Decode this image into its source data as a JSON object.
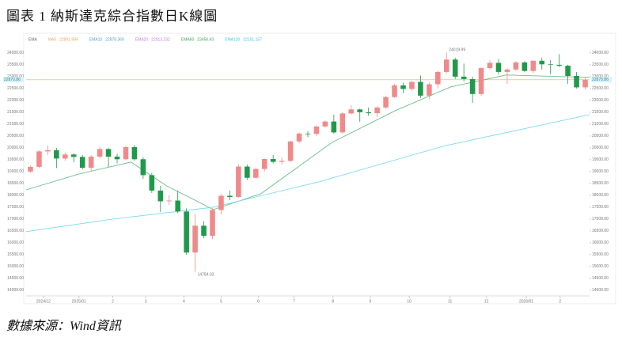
{
  "chart_data": {
    "type": "candlestick",
    "title": "圖表 1 納斯達克綜合指數日K線圖",
    "source": "數據來源：Wind資訊",
    "indicators": [
      {
        "name": "EMA",
        "color": "#666"
      },
      {
        "name": "MA5",
        "value": 22891.584,
        "color": "#f4a460"
      },
      {
        "name": "EMA10",
        "value": 22878.369,
        "color": "#4aa3c8"
      },
      {
        "name": "EMA20",
        "value": 22913.232,
        "color": "#c77dd8"
      },
      {
        "name": "EMA60",
        "value": 23456.43,
        "color": "#3aa55a"
      },
      {
        "name": "EMA120",
        "value": 22151.157,
        "color": "#38c8e0"
      }
    ],
    "up_color": "#f08a8a",
    "down_color": "#1f9a4a",
    "candles": [
      [
        19000,
        19250,
        18950,
        19200
      ],
      [
        19200,
        19900,
        19150,
        19850
      ],
      [
        19850,
        20100,
        19700,
        19900
      ],
      [
        19900,
        20000,
        19150,
        19550
      ],
      [
        19550,
        19800,
        19450,
        19720
      ],
      [
        19720,
        19780,
        19400,
        19620
      ],
      [
        19620,
        19700,
        19100,
        19160
      ],
      [
        19160,
        19700,
        19000,
        19630
      ],
      [
        19630,
        20050,
        19550,
        19950
      ],
      [
        19950,
        20000,
        19200,
        19630
      ],
      [
        19630,
        19750,
        19350,
        19520
      ],
      [
        19520,
        20080,
        19480,
        20030
      ],
      [
        20030,
        20120,
        19450,
        19520
      ],
      [
        19520,
        19600,
        18700,
        18850
      ],
      [
        18850,
        18950,
        18100,
        18200
      ],
      [
        18200,
        18400,
        17300,
        17750
      ],
      [
        17750,
        18000,
        17600,
        17780
      ],
      [
        17780,
        18200,
        17250,
        17320
      ],
      [
        17320,
        17450,
        15500,
        15590
      ],
      [
        15590,
        17200,
        14784.03,
        16720
      ],
      [
        16720,
        16900,
        16200,
        16290
      ],
      [
        16290,
        17450,
        16150,
        17380
      ],
      [
        17380,
        18050,
        17200,
        17980
      ],
      [
        17980,
        18200,
        17800,
        17930
      ],
      [
        17930,
        19300,
        17900,
        19210
      ],
      [
        19210,
        19300,
        18650,
        18740
      ],
      [
        18740,
        19150,
        18700,
        19110
      ],
      [
        19110,
        19550,
        19000,
        19530
      ],
      [
        19530,
        19700,
        19350,
        19410
      ],
      [
        19410,
        19600,
        19300,
        19450
      ],
      [
        19450,
        20300,
        19400,
        20270
      ],
      [
        20270,
        20650,
        20200,
        20600
      ],
      [
        20600,
        20700,
        20450,
        20590
      ],
      [
        20590,
        20950,
        20500,
        20900
      ],
      [
        20900,
        21150,
        20850,
        21110
      ],
      [
        21110,
        21400,
        20600,
        20650
      ],
      [
        20650,
        21500,
        20600,
        21450
      ],
      [
        21450,
        21800,
        21400,
        21620
      ],
      [
        21620,
        21650,
        21100,
        21500
      ],
      [
        21500,
        21700,
        21350,
        21460
      ],
      [
        21460,
        21750,
        21300,
        21700
      ],
      [
        21700,
        22200,
        21650,
        22140
      ],
      [
        22140,
        22700,
        22100,
        22630
      ],
      [
        22630,
        22750,
        22300,
        22480
      ],
      [
        22480,
        22800,
        22400,
        22780
      ],
      [
        22780,
        23050,
        22100,
        22200
      ],
      [
        22200,
        22750,
        22050,
        22680
      ],
      [
        22680,
        23250,
        22500,
        23200
      ],
      [
        23200,
        24019.99,
        23150,
        23720
      ],
      [
        23720,
        23800,
        22900,
        23000
      ],
      [
        23000,
        23550,
        22800,
        22900
      ],
      [
        22900,
        23000,
        21900,
        22270
      ],
      [
        22270,
        23400,
        22200,
        23360
      ],
      [
        23360,
        23700,
        23300,
        23580
      ],
      [
        23580,
        23750,
        23100,
        23200
      ],
      [
        23200,
        23350,
        22700,
        23300
      ],
      [
        23300,
        23650,
        23250,
        23600
      ],
      [
        23600,
        23650,
        23200,
        23240
      ],
      [
        23240,
        23700,
        23150,
        23670
      ],
      [
        23670,
        23800,
        23300,
        23520
      ],
      [
        23520,
        23700,
        23100,
        23500
      ],
      [
        23500,
        23950,
        23400,
        23460
      ],
      [
        23460,
        23500,
        22700,
        23030
      ],
      [
        23030,
        23200,
        22500,
        22550
      ],
      [
        22550,
        23000,
        22450,
        22870
      ]
    ],
    "ma_lines": [
      {
        "color": "#6bbf8a",
        "x": [
          0,
          6.1,
          12.1,
          16.2,
          21.6,
          27.1,
          35.3,
          42.6,
          49.0,
          55.4,
          65
        ],
        "values": [
          18230,
          18900,
          19400,
          18400,
          17400,
          18070,
          20230,
          21570,
          22570,
          23070,
          22970
        ]
      },
      {
        "color": "#7fdcec",
        "x": [
          0,
          10,
          21.6,
          33.8,
          48.1,
          65
        ],
        "values": [
          16470,
          17000,
          17500,
          18570,
          20070,
          21400
        ]
      }
    ],
    "last_price": 22870.86,
    "last_price_color": "#f4a460",
    "xlim": [
      0,
      65
    ],
    "ylim": [
      13830,
      24230
    ],
    "xticks": [
      {
        "value": 2.0,
        "label": "2024/12"
      },
      {
        "value": 6.1,
        "label": "2025/01"
      },
      {
        "value": 10.0,
        "label": "2"
      },
      {
        "value": 13.8,
        "label": "3"
      },
      {
        "value": 18.2,
        "label": "4"
      },
      {
        "value": 22.5,
        "label": "5"
      },
      {
        "value": 26.8,
        "label": "6"
      },
      {
        "value": 30.9,
        "label": "7"
      },
      {
        "value": 35.4,
        "label": "8"
      },
      {
        "value": 39.7,
        "label": "9"
      },
      {
        "value": 44.2,
        "label": "10"
      },
      {
        "value": 48.9,
        "label": "11"
      },
      {
        "value": 53.1,
        "label": "12"
      },
      {
        "value": 57.7,
        "label": "2026/01"
      },
      {
        "value": 61.6,
        "label": "2"
      }
    ],
    "yticks": [
      {
        "value": 14000,
        "label": "14000.00"
      },
      {
        "value": 14500,
        "label": "14500.00"
      },
      {
        "value": 15000,
        "label": "15000.00"
      },
      {
        "value": 15500,
        "label": "15500.00"
      },
      {
        "value": 16000,
        "label": "16000.00"
      },
      {
        "value": 16500,
        "label": "16500.00"
      },
      {
        "value": 17000,
        "label": "17000.00"
      },
      {
        "value": 17500,
        "label": "17500.00"
      },
      {
        "value": 18000,
        "label": "18000.00"
      },
      {
        "value": 18500,
        "label": "18500.00"
      },
      {
        "value": 19000,
        "label": "19000.00"
      },
      {
        "value": 19500,
        "label": "19500.00"
      },
      {
        "value": 20000,
        "label": "20000.00"
      },
      {
        "value": 20500,
        "label": "20500.00"
      },
      {
        "value": 21000,
        "label": "21000.00"
      },
      {
        "value": 21500,
        "label": "21500.00"
      },
      {
        "value": 22000,
        "label": "22000.00"
      },
      {
        "value": 22500,
        "label": "22500.00"
      },
      {
        "value": 23000,
        "label": "23000.00"
      },
      {
        "value": 23500,
        "label": "23500.00"
      },
      {
        "value": 24000,
        "label": "24000.00"
      }
    ]
  }
}
